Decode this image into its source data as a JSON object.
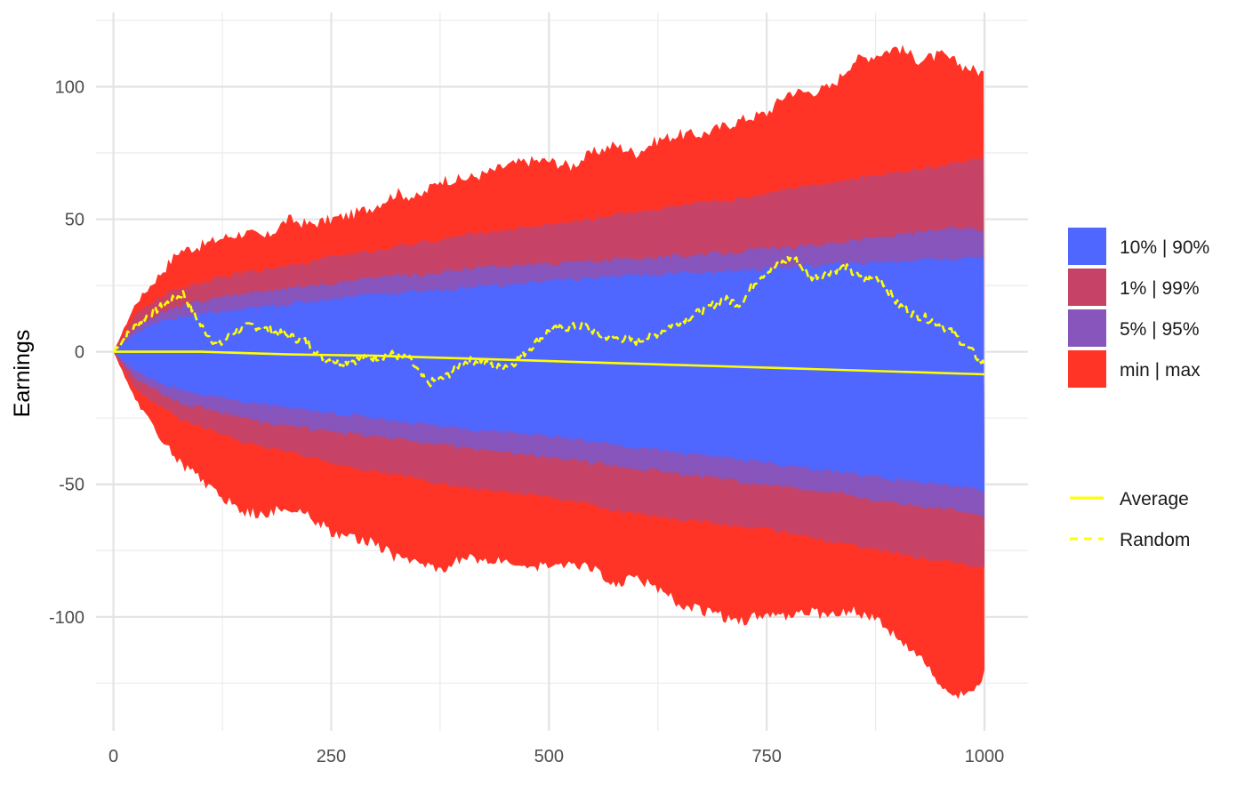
{
  "chart_data": {
    "type": "area",
    "title": "",
    "xlabel": "",
    "ylabel": "Earnings",
    "xlim": [
      -20,
      1050
    ],
    "ylim": [
      -143,
      128
    ],
    "x_ticks": [
      0,
      250,
      500,
      750,
      1000
    ],
    "x_tick_labels": [
      "0",
      "250",
      "500",
      "750",
      "1000"
    ],
    "y_ticks": [
      -100,
      -50,
      0,
      50,
      100
    ],
    "y_tick_labels": [
      "-100",
      "-50",
      "0",
      "50",
      "100"
    ],
    "grid": true,
    "legend_position": "right",
    "bands": [
      {
        "name": "min | max",
        "color": "#ff3427",
        "x": [
          0,
          25,
          50,
          75,
          100,
          125,
          150,
          175,
          200,
          225,
          250,
          275,
          300,
          325,
          350,
          375,
          400,
          425,
          450,
          475,
          500,
          525,
          550,
          575,
          600,
          625,
          650,
          675,
          700,
          725,
          750,
          775,
          800,
          825,
          850,
          875,
          900,
          925,
          950,
          975,
          1000
        ],
        "upper": [
          0,
          18,
          28,
          38,
          40,
          43,
          45,
          43,
          50,
          48,
          50,
          52,
          55,
          60,
          58,
          65,
          65,
          67,
          70,
          72,
          72,
          70,
          75,
          78,
          75,
          80,
          82,
          82,
          85,
          88,
          90,
          98,
          98,
          100,
          110,
          112,
          115,
          110,
          112,
          108,
          105
        ],
        "lower": [
          0,
          -18,
          -30,
          -42,
          -48,
          -55,
          -60,
          -62,
          -58,
          -62,
          -68,
          -70,
          -72,
          -78,
          -80,
          -82,
          -78,
          -78,
          -78,
          -80,
          -82,
          -80,
          -82,
          -88,
          -85,
          -90,
          -95,
          -98,
          -100,
          -102,
          -98,
          -100,
          -98,
          -100,
          -98,
          -100,
          -108,
          -115,
          -125,
          -130,
          -122
        ]
      },
      {
        "name": "1% | 99%",
        "color": "#c64266",
        "x": [
          0,
          25,
          50,
          75,
          100,
          125,
          150,
          175,
          200,
          225,
          250,
          275,
          300,
          325,
          350,
          375,
          400,
          425,
          450,
          475,
          500,
          525,
          550,
          575,
          600,
          625,
          650,
          675,
          700,
          725,
          750,
          775,
          800,
          825,
          850,
          875,
          900,
          925,
          950,
          975,
          1000
        ],
        "upper": [
          0,
          14,
          20,
          24,
          26,
          28,
          30,
          31,
          33,
          34,
          36,
          37,
          38,
          40,
          41,
          42,
          44,
          45,
          46,
          47,
          48,
          49,
          50,
          52,
          53,
          54,
          55,
          56,
          57,
          58,
          60,
          62,
          63,
          64,
          65,
          67,
          68,
          69,
          70,
          72,
          73
        ],
        "lower": [
          0,
          -14,
          -20,
          -25,
          -28,
          -31,
          -34,
          -36,
          -38,
          -40,
          -42,
          -44,
          -45,
          -46,
          -48,
          -50,
          -51,
          -52,
          -53,
          -54,
          -55,
          -56,
          -58,
          -60,
          -61,
          -62,
          -63,
          -64,
          -65,
          -66,
          -67,
          -68,
          -70,
          -72,
          -73,
          -75,
          -76,
          -78,
          -79,
          -80,
          -82
        ]
      },
      {
        "name": "5% | 95%",
        "color": "#8755bc",
        "x": [
          0,
          25,
          50,
          75,
          100,
          125,
          150,
          175,
          200,
          225,
          250,
          275,
          300,
          325,
          350,
          375,
          400,
          425,
          450,
          475,
          500,
          525,
          550,
          575,
          600,
          625,
          650,
          675,
          700,
          725,
          750,
          775,
          800,
          825,
          850,
          875,
          900,
          925,
          950,
          975,
          1000
        ],
        "upper": [
          0,
          9,
          14,
          17,
          19,
          21,
          22,
          23,
          24,
          25,
          26,
          27,
          28,
          29,
          29,
          30,
          31,
          32,
          32,
          33,
          33,
          34,
          34,
          35,
          35,
          36,
          36,
          37,
          37,
          38,
          39,
          39,
          40,
          41,
          42,
          43,
          44,
          45,
          46,
          47,
          46
        ],
        "lower": [
          0,
          -10,
          -15,
          -19,
          -21,
          -23,
          -25,
          -27,
          -28,
          -29,
          -30,
          -31,
          -32,
          -33,
          -34,
          -35,
          -36,
          -37,
          -38,
          -39,
          -40,
          -41,
          -42,
          -43,
          -44,
          -45,
          -46,
          -47,
          -48,
          -49,
          -50,
          -51,
          -52,
          -53,
          -54,
          -56,
          -57,
          -58,
          -59,
          -60,
          -62
        ]
      },
      {
        "name": "10% | 90%",
        "color": "#4f66ff",
        "x": [
          0,
          25,
          50,
          75,
          100,
          125,
          150,
          175,
          200,
          225,
          250,
          275,
          300,
          325,
          350,
          375,
          400,
          425,
          450,
          475,
          500,
          525,
          550,
          575,
          600,
          625,
          650,
          675,
          700,
          725,
          750,
          775,
          800,
          825,
          850,
          875,
          900,
          925,
          950,
          975,
          1000
        ],
        "upper": [
          0,
          7,
          11,
          13,
          14,
          15,
          16,
          17,
          18,
          19,
          20,
          21,
          22,
          22,
          23,
          23,
          24,
          25,
          25,
          26,
          27,
          27,
          28,
          28,
          29,
          29,
          30,
          30,
          30,
          31,
          31,
          32,
          32,
          33,
          33,
          34,
          34,
          35,
          35,
          35,
          36
        ],
        "lower": [
          0,
          -7,
          -11,
          -14,
          -16,
          -17,
          -19,
          -20,
          -21,
          -22,
          -23,
          -24,
          -25,
          -26,
          -27,
          -28,
          -29,
          -30,
          -30,
          -31,
          -32,
          -33,
          -34,
          -35,
          -36,
          -37,
          -38,
          -39,
          -40,
          -41,
          -42,
          -43,
          -44,
          -45,
          -46,
          -47,
          -48,
          -49,
          -50,
          -51,
          -52
        ]
      }
    ],
    "series": [
      {
        "name": "Average",
        "style": "solid",
        "color": "#ffff00",
        "x": [
          0,
          100,
          200,
          300,
          400,
          500,
          600,
          700,
          800,
          900,
          1000
        ],
        "values": [
          0,
          0,
          -1,
          -1.5,
          -2.5,
          -3.5,
          -4.5,
          -5.5,
          -6.5,
          -7.5,
          -8.5
        ]
      },
      {
        "name": "Random",
        "style": "dashed",
        "color": "#ffff00",
        "x": [
          0,
          20,
          40,
          60,
          80,
          100,
          120,
          140,
          160,
          180,
          200,
          220,
          240,
          260,
          280,
          300,
          320,
          340,
          360,
          380,
          400,
          420,
          440,
          460,
          480,
          500,
          520,
          540,
          560,
          580,
          600,
          620,
          640,
          660,
          680,
          700,
          720,
          740,
          760,
          780,
          800,
          820,
          840,
          860,
          880,
          900,
          920,
          940,
          960,
          980,
          1000
        ],
        "values": [
          0,
          8,
          14,
          18,
          22,
          10,
          2,
          8,
          10,
          8,
          6,
          4,
          -2,
          -4,
          -3,
          -2,
          -1,
          -3,
          -12,
          -10,
          -4,
          -3,
          -6,
          -4,
          2,
          8,
          9,
          10,
          6,
          5,
          4,
          6,
          10,
          13,
          16,
          20,
          18,
          28,
          32,
          36,
          28,
          30,
          32,
          27,
          28,
          18,
          14,
          12,
          8,
          2,
          -5
        ]
      }
    ],
    "legend": [
      {
        "label": "10% | 90%",
        "kind": "fill",
        "color": "#4f66ff"
      },
      {
        "label": "1% | 99%",
        "kind": "fill",
        "color": "#c64266"
      },
      {
        "label": "5% | 95%",
        "kind": "fill",
        "color": "#8755bc"
      },
      {
        "label": "min | max",
        "kind": "fill",
        "color": "#ff3427"
      },
      {
        "label": "Average",
        "kind": "line",
        "dash": false,
        "color": "#ffff00"
      },
      {
        "label": "Random",
        "kind": "line",
        "dash": true,
        "color": "#ffff00"
      }
    ]
  }
}
